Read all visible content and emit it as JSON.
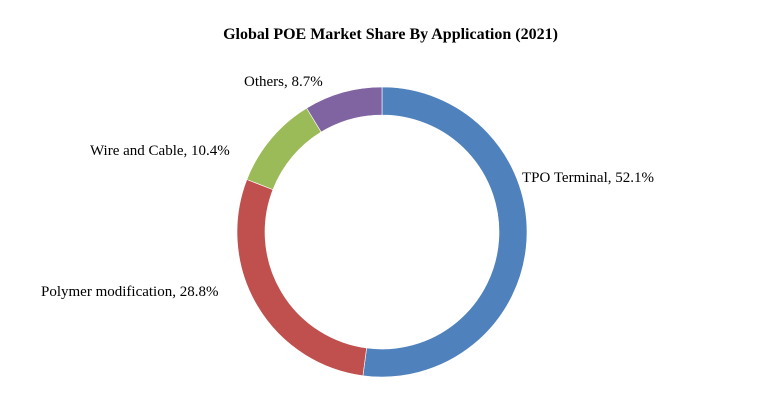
{
  "chart_data": {
    "type": "pie",
    "subtype": "donut",
    "title": "Global POE Market Share By Application (2021)",
    "categories": [
      "TPO Terminal",
      "Polymer modification",
      "Wire and Cable",
      "Others"
    ],
    "values": [
      52.1,
      28.8,
      10.4,
      8.7
    ],
    "unit": "%",
    "colors": [
      "#4f81bd",
      "#c0504d",
      "#9bbb59",
      "#8064a2"
    ],
    "labels": [
      "TPO Terminal, 52.1%",
      "Polymer modification, 28.8%",
      "Wire and Cable, 10.4%",
      "Others, 8.7%"
    ],
    "legend": "none"
  }
}
